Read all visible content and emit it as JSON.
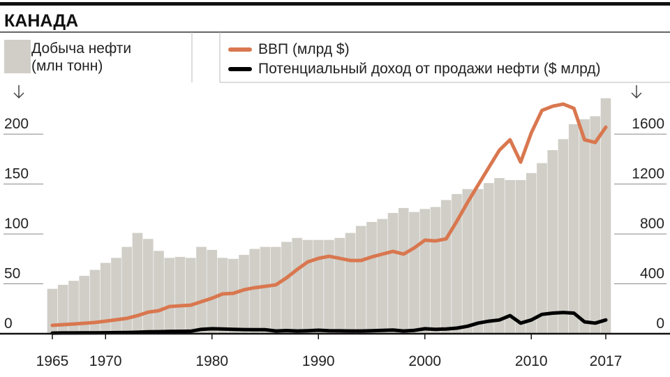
{
  "chart_data": {
    "type": "combo",
    "title": "КАНАДА",
    "x": [
      1965,
      1966,
      1967,
      1968,
      1969,
      1970,
      1971,
      1972,
      1973,
      1974,
      1975,
      1976,
      1977,
      1978,
      1979,
      1980,
      1981,
      1982,
      1983,
      1984,
      1985,
      1986,
      1987,
      1988,
      1989,
      1990,
      1991,
      1992,
      1993,
      1994,
      1995,
      1996,
      1997,
      1998,
      1999,
      2000,
      2001,
      2002,
      2003,
      2004,
      2005,
      2006,
      2007,
      2008,
      2009,
      2010,
      2011,
      2012,
      2013,
      2014,
      2015,
      2016,
      2017
    ],
    "xlim": [
      1965,
      2017
    ],
    "xticks": [
      1965,
      1970,
      1980,
      1990,
      2000,
      2010,
      2017
    ],
    "ylim": [
      0,
      240
    ],
    "yticks": [
      0,
      50,
      100,
      150,
      200
    ],
    "y2lim": [
      0,
      1920
    ],
    "y2ticks": [
      0,
      400,
      800,
      1200,
      1600
    ],
    "series": [
      {
        "name": "Добыча нефти (млн тонн)",
        "type": "bar",
        "axis": "y",
        "color": "#d0cec7",
        "values": [
          45,
          49,
          53,
          58,
          64,
          71,
          76,
          87,
          101,
          95,
          83,
          76,
          77,
          76,
          87,
          84,
          76,
          75,
          79,
          85,
          87,
          87,
          92,
          96,
          94,
          94,
          94,
          96,
          101,
          108,
          112,
          115,
          121,
          126,
          122,
          125,
          127,
          134,
          140,
          145,
          145,
          151,
          156,
          154,
          154,
          161,
          171,
          184,
          195,
          210,
          215,
          218,
          236
        ]
      },
      {
        "name": "ВВП (млрд $)",
        "type": "line",
        "axis": "y2",
        "color": "#d9774f",
        "values": [
          67,
          73,
          78,
          84,
          90,
          101,
          112,
          123,
          145,
          173,
          185,
          218,
          224,
          229,
          257,
          285,
          319,
          324,
          352,
          369,
          380,
          392,
          448,
          515,
          576,
          604,
          621,
          604,
          587,
          587,
          615,
          638,
          660,
          638,
          688,
          750,
          744,
          761,
          901,
          1052,
          1192,
          1332,
          1471,
          1555,
          1376,
          1611,
          1790,
          1824,
          1841,
          1807,
          1555,
          1533,
          1656
        ]
      },
      {
        "name": "Потенциальный доход от продажи нефти ($ млрд)",
        "type": "line",
        "axis": "y2",
        "color": "#000000",
        "values": [
          5,
          6,
          6,
          7,
          7,
          8,
          9,
          10,
          12,
          15,
          16,
          18,
          19,
          20,
          35,
          40,
          38,
          35,
          33,
          32,
          32,
          22,
          25,
          22,
          24,
          28,
          24,
          23,
          22,
          22,
          24,
          27,
          29,
          22,
          27,
          40,
          35,
          38,
          45,
          60,
          85,
          100,
          110,
          145,
          85,
          110,
          155,
          165,
          170,
          165,
          95,
          85,
          110
        ]
      }
    ]
  }
}
